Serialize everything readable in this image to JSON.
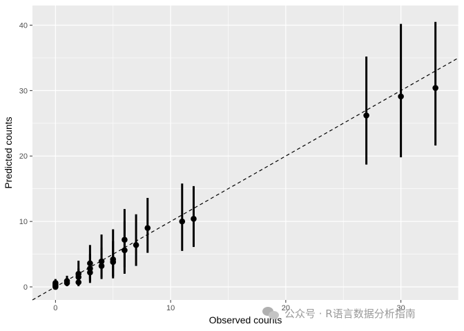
{
  "chart_data": {
    "type": "scatter",
    "title": "",
    "xlabel": "Observed counts",
    "ylabel": "Predicted counts",
    "xlim": [
      -2,
      35
    ],
    "ylim": [
      -2,
      43
    ],
    "x_ticks": [
      0,
      10,
      20,
      30
    ],
    "y_ticks": [
      0,
      10,
      20,
      30,
      40
    ],
    "grid": true,
    "reference_line": {
      "style": "dashed",
      "intercept": 0,
      "slope": 1
    },
    "points": [
      {
        "x": 0,
        "y": 0.0,
        "lo": 0.0,
        "hi": 0.4
      },
      {
        "x": 0,
        "y": 0.2,
        "lo": 0.0,
        "hi": 0.6
      },
      {
        "x": 0,
        "y": 0.4,
        "lo": 0.0,
        "hi": 1.0
      },
      {
        "x": 0,
        "y": 0.6,
        "lo": 0.1,
        "hi": 1.2
      },
      {
        "x": 1,
        "y": 0.6,
        "lo": 0.1,
        "hi": 1.3
      },
      {
        "x": 1,
        "y": 0.9,
        "lo": 0.2,
        "hi": 1.7
      },
      {
        "x": 2,
        "y": 0.7,
        "lo": 0.1,
        "hi": 1.5
      },
      {
        "x": 2,
        "y": 1.5,
        "lo": 0.4,
        "hi": 2.8
      },
      {
        "x": 2,
        "y": 2.0,
        "lo": 0.6,
        "hi": 4.0
      },
      {
        "x": 3,
        "y": 2.2,
        "lo": 0.6,
        "hi": 4.0
      },
      {
        "x": 3,
        "y": 2.8,
        "lo": 0.9,
        "hi": 5.0
      },
      {
        "x": 3,
        "y": 3.6,
        "lo": 1.3,
        "hi": 6.4
      },
      {
        "x": 4,
        "y": 3.2,
        "lo": 1.2,
        "hi": 6.0
      },
      {
        "x": 4,
        "y": 3.9,
        "lo": 1.5,
        "hi": 8.0
      },
      {
        "x": 5,
        "y": 3.8,
        "lo": 1.3,
        "hi": 7.0
      },
      {
        "x": 5,
        "y": 4.2,
        "lo": 1.6,
        "hi": 8.8
      },
      {
        "x": 6,
        "y": 5.6,
        "lo": 2.0,
        "hi": 10.0
      },
      {
        "x": 6,
        "y": 7.2,
        "lo": 3.0,
        "hi": 11.9
      },
      {
        "x": 7,
        "y": 6.4,
        "lo": 3.2,
        "hi": 11.1
      },
      {
        "x": 8,
        "y": 9.0,
        "lo": 5.2,
        "hi": 13.6
      },
      {
        "x": 11,
        "y": 10.0,
        "lo": 5.5,
        "hi": 15.8
      },
      {
        "x": 12,
        "y": 10.4,
        "lo": 6.1,
        "hi": 15.4
      },
      {
        "x": 27,
        "y": 26.2,
        "lo": 18.7,
        "hi": 35.2
      },
      {
        "x": 30,
        "y": 29.1,
        "lo": 19.8,
        "hi": 40.2
      },
      {
        "x": 33,
        "y": 30.4,
        "lo": 21.6,
        "hi": 40.5
      }
    ]
  },
  "watermark": {
    "text": "公众号 · R语言数据分析指南"
  },
  "colors": {
    "panel": "#ebebeb",
    "grid": "#ffffff",
    "ink": "#000000",
    "tick_text": "#4d4d4d"
  }
}
